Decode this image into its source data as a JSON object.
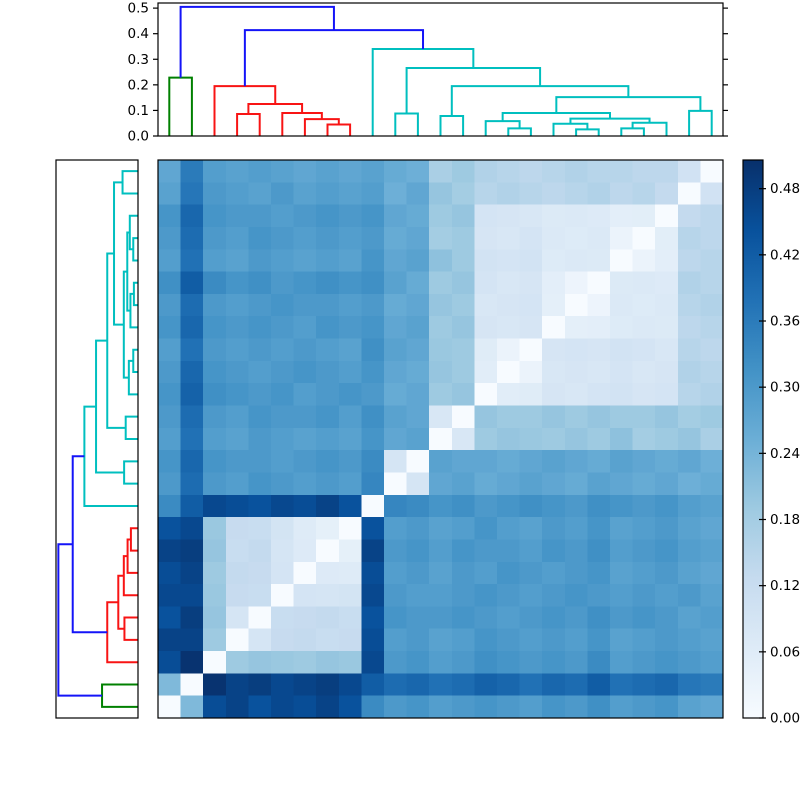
{
  "figure": {
    "background": "#ffffff",
    "description": "Hierarchical clustering heatmap with top and left dendrograms and a vertical colorbar"
  },
  "chart_data": {
    "type": "heatmap",
    "n_leaves": 25,
    "title": "",
    "xlabel": "",
    "ylabel": "",
    "vmin": 0.0,
    "vmax": 0.506,
    "row_order_note": "rows top-to-bottom are leaves 24..0, columns left-to-right are leaves 0..24, so the zero-distance diagonal runs bottom-left to top-right",
    "clusters": {
      "green_leaves": [
        0,
        1
      ],
      "red_leaves": [
        2,
        3,
        4,
        5,
        6,
        7,
        8
      ],
      "cyan_leaves": [
        9,
        10,
        11,
        12,
        13,
        14,
        15,
        16,
        17,
        18,
        19,
        20,
        21,
        22,
        23,
        24
      ]
    },
    "matrix": [
      [
        0,
        0.228,
        0.45,
        0.47,
        0.44,
        0.46,
        0.45,
        0.47,
        0.44,
        0.33,
        0.3,
        0.31,
        0.29,
        0.3,
        0.31,
        0.3,
        0.29,
        0.31,
        0.3,
        0.32,
        0.29,
        0.3,
        0.31,
        0.28,
        0.27
      ],
      [
        0.228,
        0,
        0.5,
        0.47,
        0.48,
        0.46,
        0.47,
        0.48,
        0.46,
        0.42,
        0.39,
        0.4,
        0.38,
        0.39,
        0.41,
        0.4,
        0.38,
        0.4,
        0.39,
        0.42,
        0.38,
        0.39,
        0.4,
        0.37,
        0.36
      ],
      [
        0.45,
        0.5,
        0,
        0.19,
        0.2,
        0.195,
        0.19,
        0.2,
        0.195,
        0.46,
        0.3,
        0.31,
        0.29,
        0.3,
        0.32,
        0.31,
        0.3,
        0.31,
        0.3,
        0.33,
        0.29,
        0.3,
        0.31,
        0.3,
        0.29
      ],
      [
        0.47,
        0.47,
        0.19,
        0,
        0.086,
        0.125,
        0.13,
        0.12,
        0.125,
        0.45,
        0.29,
        0.3,
        0.28,
        0.29,
        0.31,
        0.3,
        0.29,
        0.3,
        0.29,
        0.31,
        0.28,
        0.29,
        0.3,
        0.29,
        0.28
      ],
      [
        0.44,
        0.48,
        0.2,
        0.086,
        0,
        0.12,
        0.125,
        0.13,
        0.12,
        0.44,
        0.31,
        0.3,
        0.3,
        0.31,
        0.3,
        0.29,
        0.3,
        0.31,
        0.3,
        0.32,
        0.3,
        0.31,
        0.3,
        0.28,
        0.29
      ],
      [
        0.46,
        0.46,
        0.195,
        0.125,
        0.12,
        0,
        0.09,
        0.088,
        0.092,
        0.46,
        0.3,
        0.29,
        0.29,
        0.3,
        0.31,
        0.3,
        0.29,
        0.3,
        0.31,
        0.3,
        0.29,
        0.3,
        0.29,
        0.3,
        0.28
      ],
      [
        0.45,
        0.47,
        0.19,
        0.13,
        0.125,
        0.09,
        0,
        0.066,
        0.064,
        0.45,
        0.29,
        0.3,
        0.28,
        0.3,
        0.29,
        0.31,
        0.3,
        0.29,
        0.3,
        0.31,
        0.28,
        0.29,
        0.3,
        0.28,
        0.27
      ],
      [
        0.47,
        0.48,
        0.2,
        0.12,
        0.13,
        0.088,
        0.066,
        0,
        0.045,
        0.47,
        0.3,
        0.31,
        0.29,
        0.31,
        0.3,
        0.3,
        0.29,
        0.31,
        0.3,
        0.32,
        0.29,
        0.3,
        0.31,
        0.29,
        0.28
      ],
      [
        0.44,
        0.46,
        0.195,
        0.125,
        0.12,
        0.092,
        0.064,
        0.045,
        0,
        0.44,
        0.29,
        0.3,
        0.28,
        0.29,
        0.31,
        0.29,
        0.28,
        0.3,
        0.29,
        0.31,
        0.28,
        0.29,
        0.3,
        0.28,
        0.27
      ],
      [
        0.33,
        0.42,
        0.46,
        0.45,
        0.44,
        0.46,
        0.45,
        0.47,
        0.44,
        0,
        0.34,
        0.33,
        0.31,
        0.32,
        0.3,
        0.31,
        0.32,
        0.31,
        0.3,
        0.32,
        0.31,
        0.3,
        0.31,
        0.29,
        0.28
      ],
      [
        0.3,
        0.39,
        0.3,
        0.29,
        0.31,
        0.3,
        0.29,
        0.3,
        0.29,
        0.34,
        0,
        0.088,
        0.27,
        0.28,
        0.26,
        0.27,
        0.28,
        0.27,
        0.26,
        0.28,
        0.27,
        0.26,
        0.27,
        0.25,
        0.26
      ],
      [
        0.31,
        0.4,
        0.31,
        0.3,
        0.3,
        0.29,
        0.3,
        0.31,
        0.3,
        0.33,
        0.088,
        0,
        0.28,
        0.27,
        0.27,
        0.26,
        0.27,
        0.28,
        0.27,
        0.26,
        0.28,
        0.27,
        0.26,
        0.27,
        0.25
      ],
      [
        0.29,
        0.38,
        0.29,
        0.28,
        0.3,
        0.29,
        0.28,
        0.29,
        0.28,
        0.31,
        0.27,
        0.28,
        0,
        0.078,
        0.19,
        0.2,
        0.195,
        0.19,
        0.2,
        0.19,
        0.21,
        0.18,
        0.19,
        0.2,
        0.17
      ],
      [
        0.3,
        0.39,
        0.3,
        0.29,
        0.31,
        0.3,
        0.3,
        0.31,
        0.29,
        0.32,
        0.28,
        0.27,
        0.078,
        0,
        0.2,
        0.19,
        0.19,
        0.2,
        0.19,
        0.2,
        0.19,
        0.19,
        0.2,
        0.18,
        0.19
      ],
      [
        0.31,
        0.41,
        0.32,
        0.31,
        0.3,
        0.31,
        0.29,
        0.3,
        0.31,
        0.3,
        0.26,
        0.27,
        0.19,
        0.2,
        0,
        0.055,
        0.06,
        0.085,
        0.08,
        0.09,
        0.095,
        0.085,
        0.09,
        0.15,
        0.16
      ],
      [
        0.3,
        0.4,
        0.31,
        0.3,
        0.29,
        0.3,
        0.31,
        0.3,
        0.29,
        0.31,
        0.27,
        0.26,
        0.2,
        0.19,
        0.055,
        0,
        0.03,
        0.08,
        0.085,
        0.08,
        0.09,
        0.08,
        0.085,
        0.16,
        0.15
      ],
      [
        0.29,
        0.38,
        0.3,
        0.29,
        0.3,
        0.29,
        0.3,
        0.29,
        0.28,
        0.32,
        0.28,
        0.27,
        0.195,
        0.19,
        0.06,
        0.03,
        0,
        0.085,
        0.09,
        0.085,
        0.095,
        0.09,
        0.08,
        0.15,
        0.14
      ],
      [
        0.31,
        0.4,
        0.31,
        0.3,
        0.31,
        0.3,
        0.29,
        0.31,
        0.3,
        0.31,
        0.27,
        0.28,
        0.19,
        0.2,
        0.085,
        0.08,
        0.085,
        0,
        0.048,
        0.05,
        0.065,
        0.07,
        0.068,
        0.14,
        0.15
      ],
      [
        0.3,
        0.39,
        0.3,
        0.29,
        0.3,
        0.31,
        0.3,
        0.3,
        0.29,
        0.3,
        0.26,
        0.27,
        0.2,
        0.19,
        0.08,
        0.085,
        0.09,
        0.048,
        0,
        0.026,
        0.07,
        0.065,
        0.07,
        0.15,
        0.16
      ],
      [
        0.32,
        0.42,
        0.33,
        0.31,
        0.32,
        0.3,
        0.31,
        0.32,
        0.31,
        0.32,
        0.28,
        0.26,
        0.19,
        0.2,
        0.09,
        0.08,
        0.085,
        0.05,
        0.026,
        0,
        0.068,
        0.07,
        0.066,
        0.16,
        0.15
      ],
      [
        0.29,
        0.38,
        0.29,
        0.28,
        0.3,
        0.29,
        0.28,
        0.29,
        0.28,
        0.31,
        0.27,
        0.28,
        0.21,
        0.19,
        0.095,
        0.09,
        0.095,
        0.065,
        0.07,
        0.068,
        0,
        0.03,
        0.05,
        0.14,
        0.15
      ],
      [
        0.3,
        0.39,
        0.3,
        0.29,
        0.31,
        0.3,
        0.29,
        0.3,
        0.29,
        0.3,
        0.26,
        0.27,
        0.18,
        0.19,
        0.085,
        0.08,
        0.09,
        0.07,
        0.065,
        0.07,
        0.03,
        0,
        0.053,
        0.15,
        0.14
      ],
      [
        0.31,
        0.4,
        0.31,
        0.3,
        0.3,
        0.29,
        0.3,
        0.31,
        0.3,
        0.31,
        0.27,
        0.26,
        0.19,
        0.2,
        0.09,
        0.085,
        0.08,
        0.068,
        0.07,
        0.066,
        0.05,
        0.053,
        0,
        0.13,
        0.14
      ],
      [
        0.28,
        0.37,
        0.3,
        0.29,
        0.28,
        0.3,
        0.28,
        0.29,
        0.28,
        0.29,
        0.25,
        0.27,
        0.2,
        0.18,
        0.15,
        0.16,
        0.15,
        0.14,
        0.15,
        0.16,
        0.14,
        0.15,
        0.13,
        0,
        0.098
      ],
      [
        0.27,
        0.36,
        0.29,
        0.28,
        0.29,
        0.28,
        0.27,
        0.28,
        0.27,
        0.28,
        0.26,
        0.25,
        0.17,
        0.19,
        0.16,
        0.15,
        0.14,
        0.15,
        0.16,
        0.15,
        0.15,
        0.14,
        0.14,
        0.098,
        0
      ]
    ],
    "colormap": {
      "name": "Blues",
      "anchors_t": [
        0,
        0.125,
        0.25,
        0.375,
        0.5,
        0.625,
        0.75,
        0.875,
        1
      ],
      "anchors_hex": [
        "#f7fbff",
        "#deebf7",
        "#c6dbef",
        "#9ecae1",
        "#6baed6",
        "#4292c6",
        "#2171b5",
        "#08519c",
        "#08306b"
      ]
    },
    "dendrogram": {
      "line_width": 2,
      "colors": {
        "green": "#008000",
        "red": "#f81414",
        "cyan": "#00bfbf",
        "blue": "#1414f8"
      },
      "links": [
        [
          0.5,
          0,
          1.5,
          0,
          0.228,
          "green"
        ],
        [
          7.5,
          0,
          8.5,
          0,
          0.045,
          "red"
        ],
        [
          6.5,
          0,
          8.0,
          0.045,
          0.066,
          "red"
        ],
        [
          3.5,
          0,
          4.5,
          0,
          0.086,
          "red"
        ],
        [
          5.5,
          0,
          7.25,
          0.066,
          0.09,
          "red"
        ],
        [
          4.0,
          0.086,
          6.375,
          0.09,
          0.125,
          "red"
        ],
        [
          2.5,
          0,
          5.1875,
          0.125,
          0.195,
          "red"
        ],
        [
          18.5,
          0,
          19.5,
          0,
          0.026,
          "cyan"
        ],
        [
          15.5,
          0,
          16.5,
          0,
          0.03,
          "cyan"
        ],
        [
          20.5,
          0,
          21.5,
          0,
          0.03,
          "cyan"
        ],
        [
          17.5,
          0,
          19.0,
          0.026,
          0.048,
          "cyan"
        ],
        [
          21.0,
          0.03,
          22.5,
          0,
          0.052,
          "cyan"
        ],
        [
          14.5,
          0,
          16.0,
          0.03,
          0.058,
          "cyan"
        ],
        [
          18.25,
          0.048,
          21.75,
          0.052,
          0.068,
          "cyan"
        ],
        [
          15.25,
          0.058,
          20.0,
          0.068,
          0.09,
          "cyan"
        ],
        [
          23.5,
          0,
          24.5,
          0,
          0.098,
          "cyan"
        ],
        [
          12.5,
          0,
          13.5,
          0,
          0.078,
          "cyan"
        ],
        [
          10.5,
          0,
          11.5,
          0,
          0.088,
          "cyan"
        ],
        [
          17.625,
          0.09,
          24.0,
          0.098,
          0.152,
          "cyan"
        ],
        [
          13.0,
          0.078,
          20.8125,
          0.152,
          0.195,
          "cyan"
        ],
        [
          11.0,
          0.088,
          16.90625,
          0.195,
          0.266,
          "cyan"
        ],
        [
          9.5,
          0,
          13.953125,
          0.266,
          0.34,
          "cyan"
        ],
        [
          3.84375,
          0.195,
          11.7265625,
          0.34,
          0.414,
          "blue"
        ],
        [
          1.0,
          0.228,
          7.78515625,
          0.414,
          0.505,
          "blue"
        ]
      ]
    },
    "top_axis": {
      "range": [
        0,
        0.52
      ],
      "ticks": [
        0.0,
        0.1,
        0.2,
        0.3,
        0.4,
        0.5
      ],
      "tick_labels": [
        "0.0",
        "0.1",
        "0.2",
        "0.3",
        "0.4",
        "0.5"
      ]
    },
    "colorbar": {
      "range": [
        0,
        0.506
      ],
      "ticks": [
        0.0,
        0.06,
        0.12,
        0.18,
        0.24,
        0.3,
        0.36,
        0.42,
        0.48
      ],
      "tick_labels": [
        "0.00",
        "0.06",
        "0.12",
        "0.18",
        "0.24",
        "0.30",
        "0.36",
        "0.42",
        "0.48"
      ]
    }
  }
}
